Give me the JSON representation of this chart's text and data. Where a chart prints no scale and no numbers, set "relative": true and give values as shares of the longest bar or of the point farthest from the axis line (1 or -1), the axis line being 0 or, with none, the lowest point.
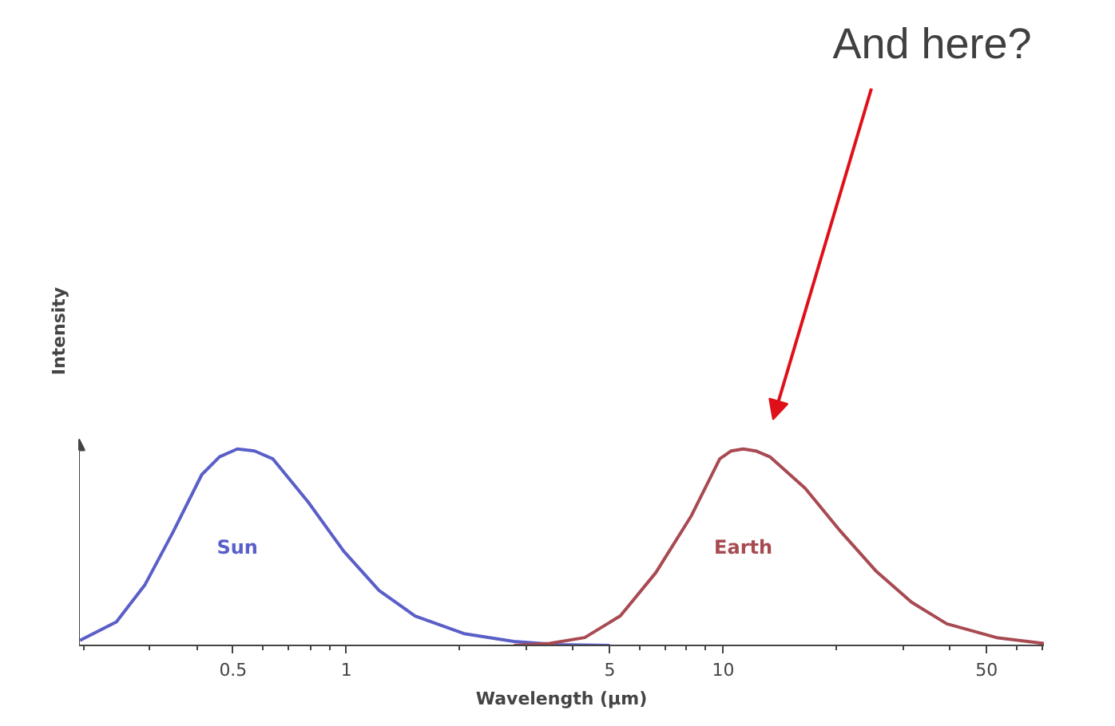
{
  "chart_data": {
    "type": "line",
    "relative": true,
    "log": "x",
    "xlabel": "Wavelength (μm)",
    "ylabel": "Intensity",
    "xlim": [
      0.195,
      71
    ],
    "xticks": [
      {
        "value": 0.2,
        "label": null
      },
      {
        "value": 0.3,
        "label": null
      },
      {
        "value": 0.4,
        "label": null
      },
      0.5,
      {
        "value": 0.6,
        "label": null
      },
      {
        "value": 0.7,
        "label": null
      },
      {
        "value": 0.8,
        "label": null
      },
      {
        "value": 0.9,
        "label": null
      },
      1,
      {
        "value": 2,
        "label": null
      },
      {
        "value": 3,
        "label": null
      },
      {
        "value": 4,
        "label": null
      },
      5,
      {
        "value": 6,
        "label": null
      },
      {
        "value": 7,
        "label": null
      },
      {
        "value": 8,
        "label": null
      },
      {
        "value": 9,
        "label": null
      },
      10,
      {
        "value": 20,
        "label": null
      },
      {
        "value": 30,
        "label": null
      },
      {
        "value": 40,
        "label": null
      },
      50,
      {
        "value": 60,
        "label": null
      },
      {
        "value": 70,
        "label": null
      }
    ],
    "series": [
      {
        "name": "Sun",
        "color": "#5a5fc8",
        "x": [
          0.196,
          0.245,
          0.292,
          0.347,
          0.413,
          0.46,
          0.513,
          0.57,
          0.637,
          0.791,
          0.983,
          1.22,
          1.52,
          2.05,
          2.78,
          3.61,
          5.0
        ],
        "values": [
          0.025,
          0.12,
          0.31,
          0.58,
          0.87,
          0.96,
          1.0,
          0.99,
          0.95,
          0.73,
          0.48,
          0.28,
          0.15,
          0.06,
          0.02,
          0.004,
          0
        ]
      },
      {
        "name": "Earth",
        "color": "#a84a52",
        "x": [
          2.78,
          3.46,
          4.29,
          5.33,
          6.62,
          8.23,
          9.79,
          10.5,
          11.3,
          12.2,
          13.3,
          16.5,
          20.5,
          25.4,
          31.6,
          39.2,
          53.1,
          71.0
        ],
        "values": [
          0,
          0.01,
          0.04,
          0.15,
          0.37,
          0.66,
          0.95,
          0.99,
          1.0,
          0.99,
          0.96,
          0.8,
          0.58,
          0.38,
          0.22,
          0.11,
          0.04,
          0.01
        ]
      }
    ],
    "annotations": [
      "And here?"
    ]
  }
}
